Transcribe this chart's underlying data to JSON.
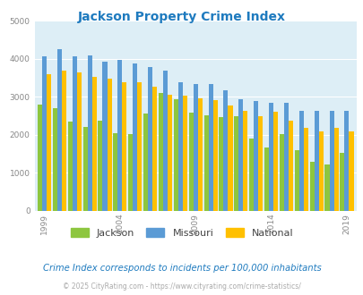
{
  "title": "Jackson Property Crime Index",
  "years": [
    1999,
    2000,
    2001,
    2002,
    2003,
    2004,
    2005,
    2006,
    2007,
    2008,
    2009,
    2010,
    2011,
    2012,
    2013,
    2014,
    2015,
    2016,
    2017,
    2018,
    2019
  ],
  "jackson": [
    2800,
    2700,
    2350,
    2200,
    2380,
    2040,
    2025,
    2560,
    3100,
    2930,
    2580,
    2520,
    2470,
    2480,
    1910,
    1660,
    2010,
    1600,
    1280,
    1220,
    1530
  ],
  "missouri": [
    4060,
    4250,
    4060,
    4080,
    3920,
    3960,
    3880,
    3780,
    3680,
    3380,
    3330,
    3330,
    3170,
    2930,
    2880,
    2840,
    2830,
    2640,
    2640,
    2640,
    2640
  ],
  "national": [
    3600,
    3680,
    3640,
    3520,
    3480,
    3380,
    3375,
    3260,
    3060,
    3020,
    2970,
    2900,
    2770,
    2640,
    2500,
    2600,
    2380,
    2180,
    2100,
    2180,
    2100
  ],
  "jackson_color": "#8dc63f",
  "missouri_color": "#5b9bd5",
  "national_color": "#ffc000",
  "bg_color": "#ddeef6",
  "ylim": [
    0,
    5000
  ],
  "yticks": [
    0,
    1000,
    2000,
    3000,
    4000,
    5000
  ],
  "xtick_years": [
    1999,
    2004,
    2009,
    2014,
    2019
  ],
  "subtitle": "Crime Index corresponds to incidents per 100,000 inhabitants",
  "footer": "© 2025 CityRating.com - https://www.cityrating.com/crime-statistics/",
  "title_color": "#1f7bbf",
  "subtitle_color": "#1f7bbf",
  "footer_color": "#aaaaaa",
  "tick_color": "#888888",
  "legend_labels": [
    "Jackson",
    "Missouri",
    "National"
  ]
}
